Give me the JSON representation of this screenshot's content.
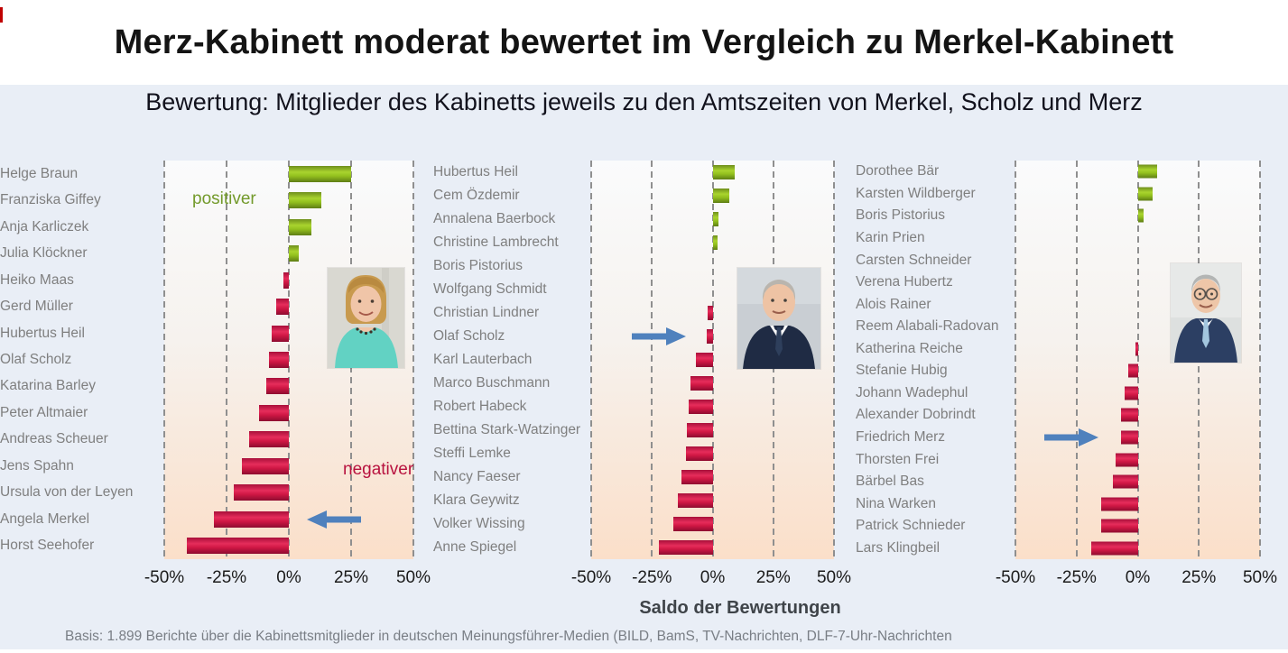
{
  "page": {
    "title": "Merz-Kabinett moderat bewertet im Vergleich zu Merkel-Kabinett",
    "subtitle": "Bewertung: Mitglieder des Kabinetts jeweils zu den Amtszeiten von Merkel, Scholz und Merz",
    "axis_title": "Saldo der Bewertungen",
    "footer": "Basis: 1.899 Berichte über die Kabinettsmitglieder in deutschen Meinungsführer-Medien (BILD, BamS, TV-Nachrichten, DLF-7-Uhr-Nachrichten",
    "annotations": {
      "positive": "positiver",
      "negative": "negativer"
    }
  },
  "colors": {
    "positive_bar": "#94c11c",
    "negative_bar": "#cf1744",
    "arrow": "#4f81bd",
    "positive_text": "#739a2b",
    "negative_text": "#b8123f",
    "page_background": "#e9eef6",
    "plot_background_bottom": "#fbdfc9",
    "label_text": "#7f7f7f"
  },
  "chart_data": [
    {
      "type": "bar",
      "orientation": "horizontal",
      "unit": "%",
      "xlim": [
        -50,
        50
      ],
      "x_ticks": [
        "-50%",
        "-25%",
        "0%",
        "25%",
        "50%"
      ],
      "grid": "dashed-vertical",
      "photo": "angela-merkel-photo",
      "arrow": {
        "direction": "left",
        "at_category": "Angela Merkel"
      },
      "categories": [
        "Helge Braun",
        "Franziska Giffey",
        "Anja Karliczek",
        "Julia Klöckner",
        "Heiko Maas",
        "Gerd Müller",
        "Hubertus Heil",
        "Olaf Scholz",
        "Katarina Barley",
        "Peter Altmaier",
        "Andreas Scheuer",
        "Jens Spahn",
        "Ursula von der Leyen",
        "Angela Merkel",
        "Horst Seehofer"
      ],
      "values": [
        25,
        13,
        9,
        4,
        -2,
        -5,
        -7,
        -8,
        -9,
        -12,
        -16,
        -19,
        -22,
        -30,
        -41
      ]
    },
    {
      "type": "bar",
      "orientation": "horizontal",
      "unit": "%",
      "xlim": [
        -50,
        50
      ],
      "x_ticks": [
        "-50%",
        "-25%",
        "0%",
        "25%",
        "50%"
      ],
      "grid": "dashed-vertical",
      "photo": "olaf-scholz-photo",
      "arrow": {
        "direction": "right",
        "at_category": "Olaf Scholz"
      },
      "categories": [
        "Hubertus Heil",
        "Cem Özdemir",
        "Annalena Baerbock",
        "Christine Lambrecht",
        "Boris Pistorius",
        "Wolfgang Schmidt",
        "Christian Lindner",
        "Olaf Scholz",
        "Karl Lauterbach",
        "Marco Buschmann",
        "Robert Habeck",
        "Bettina Stark-Watzinger",
        "Steffi Lemke",
        "Nancy Faeser",
        "Klara Geywitz",
        "Volker Wissing",
        "Anne Spiegel"
      ],
      "values": [
        9,
        7,
        2.5,
        2,
        0,
        0,
        -2,
        -2.5,
        -7,
        -9,
        -10,
        -10.5,
        -11,
        -13,
        -14.5,
        -16,
        -22
      ]
    },
    {
      "type": "bar",
      "orientation": "horizontal",
      "unit": "%",
      "xlim": [
        -50,
        50
      ],
      "x_ticks": [
        "-50%",
        "-25%",
        "0%",
        "25%",
        "50%"
      ],
      "grid": "dashed-vertical",
      "photo": "friedrich-merz-photo",
      "arrow": {
        "direction": "right",
        "at_category": "Friedrich Merz"
      },
      "categories": [
        "Dorothee Bär",
        "Karsten Wildberger",
        "Boris Pistorius",
        "Karin Prien",
        "Carsten Schneider",
        "Verena Hubertz",
        "Alois Rainer",
        "Reem Alabali-Radovan",
        "Katherina Reiche",
        "Stefanie Hubig",
        "Johann Wadephul",
        "Alexander Dobrindt",
        "Friedrich Merz",
        "Thorsten Frei",
        "Bärbel Bas",
        "Nina Warken",
        "Patrick Schnieder",
        "Lars Klingbeil"
      ],
      "values": [
        8,
        6,
        2.5,
        0,
        0,
        0,
        0,
        0,
        -1,
        -4,
        -5.5,
        -7,
        -7,
        -9,
        -10,
        -15,
        -15,
        -19
      ]
    }
  ]
}
